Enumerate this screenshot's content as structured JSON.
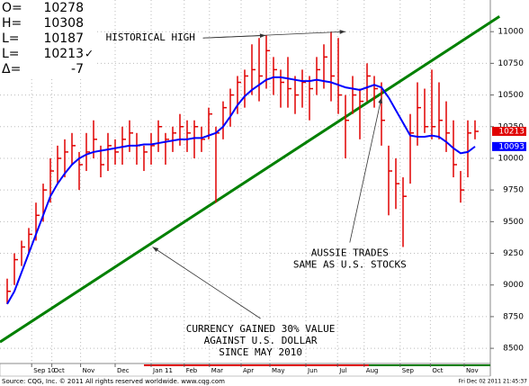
{
  "chart_data": {
    "type": "ohlc",
    "quote": [
      {
        "label": "O=",
        "value": 10278
      },
      {
        "label": "H=",
        "value": 10308
      },
      {
        "label": "L=",
        "value": 10187
      },
      {
        "label": "L=",
        "value": 10213,
        "mark": "✓"
      },
      {
        "label": "Δ=",
        "value": -7
      }
    ],
    "x": [
      0,
      1,
      2,
      3,
      4,
      5,
      6,
      7,
      8,
      9,
      10,
      11,
      12,
      13,
      14,
      15,
      16,
      17,
      18,
      19,
      20,
      21,
      22,
      23,
      24,
      25,
      26,
      27,
      28,
      29,
      30,
      31,
      32,
      33,
      34,
      35,
      36,
      37,
      38,
      39,
      40,
      41,
      42,
      43,
      44,
      45,
      46,
      47,
      48,
      49,
      50,
      51,
      52,
      53,
      54,
      55,
      56,
      57,
      58,
      59,
      60,
      61,
      62,
      63,
      64,
      65
    ],
    "high": [
      9050,
      9250,
      9350,
      9450,
      9650,
      9800,
      10000,
      10100,
      10150,
      10200,
      10050,
      10200,
      10300,
      10100,
      10200,
      10150,
      10250,
      10300,
      10200,
      10100,
      10200,
      10300,
      10200,
      10250,
      10350,
      10300,
      10300,
      10250,
      10400,
      10250,
      10450,
      10550,
      10650,
      10700,
      10900,
      10950,
      10970,
      10800,
      10700,
      10800,
      10650,
      10700,
      10650,
      10800,
      10900,
      11000,
      10950,
      10500,
      10650,
      10550,
      10750,
      10650,
      10600,
      10100,
      10000,
      9850,
      10350,
      10600,
      10550,
      10700,
      10600,
      10450,
      10300,
      9900,
      10300,
      10300
    ],
    "low": [
      8850,
      9000,
      9150,
      9250,
      9350,
      9500,
      9650,
      9800,
      9850,
      9950,
      9750,
      9900,
      10000,
      9850,
      9900,
      9950,
      9950,
      10050,
      9950,
      9900,
      9950,
      10050,
      9950,
      10050,
      10100,
      10050,
      10000,
      10050,
      10150,
      9650,
      10150,
      10250,
      10350,
      10400,
      10500,
      10450,
      10550,
      10500,
      10400,
      10400,
      10350,
      10400,
      10300,
      10500,
      10550,
      10450,
      10350,
      10000,
      10350,
      10150,
      10450,
      10400,
      10100,
      9550,
      9600,
      9300,
      9800,
      10100,
      10200,
      10150,
      10150,
      10050,
      9850,
      9650,
      9850,
      10150
    ],
    "close": [
      8950,
      9200,
      9300,
      9400,
      9550,
      9750,
      9900,
      10000,
      10050,
      10100,
      9950,
      10050,
      10150,
      9950,
      10100,
      10050,
      10150,
      10200,
      10100,
      10050,
      10100,
      10250,
      10150,
      10200,
      10250,
      10200,
      10250,
      10150,
      10350,
      10200,
      10400,
      10500,
      10600,
      10650,
      10700,
      10650,
      10850,
      10700,
      10600,
      10550,
      10500,
      10600,
      10550,
      10700,
      10800,
      10650,
      10500,
      10300,
      10500,
      10450,
      10650,
      10550,
      10300,
      9900,
      9800,
      9700,
      10200,
      10400,
      10250,
      10250,
      10300,
      10200,
      9950,
      9750,
      10200,
      10213
    ],
    "average": [
      8850,
      8950,
      9100,
      9250,
      9400,
      9550,
      9700,
      9800,
      9880,
      9950,
      10000,
      10030,
      10050,
      10060,
      10070,
      10080,
      10090,
      10100,
      10100,
      10110,
      10110,
      10120,
      10130,
      10140,
      10150,
      10150,
      10160,
      10160,
      10180,
      10200,
      10250,
      10330,
      10420,
      10490,
      10540,
      10580,
      10620,
      10640,
      10640,
      10630,
      10620,
      10610,
      10610,
      10620,
      10610,
      10600,
      10580,
      10560,
      10550,
      10540,
      10560,
      10580,
      10560,
      10480,
      10380,
      10280,
      10180,
      10170,
      10170,
      10180,
      10170,
      10130,
      10080,
      10040,
      10050,
      10093
    ],
    "bar_color": "#e00000",
    "average_color": "#0000ff",
    "trend": {
      "x": [
        -1,
        68.4
      ],
      "y": [
        8550,
        11120
      ],
      "color": "#008000"
    },
    "ylim": [
      8380,
      11250
    ],
    "xlim": [
      -1,
      67.1
    ],
    "yticks": [
      8500,
      8750,
      9000,
      9250,
      9500,
      9750,
      10000,
      10250,
      10500,
      10750,
      11000
    ],
    "xticks": [
      {
        "value": 3.4,
        "label": "Sep 10"
      },
      {
        "value": 6.2,
        "label": "Oct"
      },
      {
        "value": 10.2,
        "label": "Nov"
      },
      {
        "value": 15,
        "label": "Dec"
      },
      {
        "value": 20,
        "label": "Jan 11"
      },
      {
        "value": 24.6,
        "label": "Feb"
      },
      {
        "value": 28.1,
        "label": "Mar"
      },
      {
        "value": 32.5,
        "label": "Apr"
      },
      {
        "value": 36.5,
        "label": "May"
      },
      {
        "value": 41.5,
        "label": "Jun"
      },
      {
        "value": 45.9,
        "label": "Jul"
      },
      {
        "value": 49.6,
        "label": "Aug"
      },
      {
        "value": 54.6,
        "label": "Sep"
      },
      {
        "value": 58.8,
        "label": "Oct"
      },
      {
        "value": 63.5,
        "label": "Nov"
      }
    ],
    "grid": true,
    "annotations": [
      {
        "lines": [
          "HISTORICAL HIGH"
        ],
        "at": [
          13.7,
          10950
        ],
        "arrows": [
          [
            35.9,
            10970
          ],
          [
            47,
            11000
          ]
        ]
      },
      {
        "lines": [
          "AUSSIE TRADES",
          "SAME AS U.S. STOCKS"
        ],
        "at": [
          47.6,
          9250
        ],
        "arrows": [
          [
            52,
            10480
          ]
        ]
      },
      {
        "lines": [
          "CURRENCY GAINED 30% VALUE",
          "AGAINST U.S. DOLLAR",
          "SINCE MAY 2010"
        ],
        "at": [
          35.2,
          8650
        ],
        "arrows": [
          [
            20.2,
            9300
          ]
        ]
      }
    ],
    "footer": "Source: CQG, Inc. © 2011 All rights reserved worldwide. www.cqg.com",
    "timestamp": "Fri Dec 02 2011 21:45:37"
  }
}
